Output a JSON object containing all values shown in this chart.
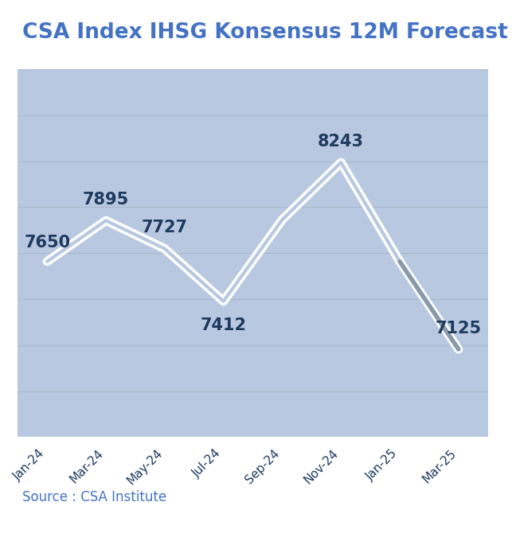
{
  "title": "CSA Index IHSG Konsensus 12M Forecast",
  "source": "Source : CSA Institute",
  "categories": [
    "Jan-24",
    "Mar-24",
    "May-24",
    "Jul-24",
    "Sep-24",
    "Nov-24",
    "Jan-25",
    "Mar-25"
  ],
  "values": [
    7650,
    7895,
    7727,
    7412,
    7900,
    8243,
    7650,
    7125
  ],
  "labels": [
    7650,
    7895,
    7727,
    7412,
    null,
    8243,
    null,
    7125
  ],
  "label_offsets_y": [
    120,
    130,
    130,
    -140,
    null,
    130,
    null,
    130
  ],
  "bg_color": "#b8c8e0",
  "plot_bg_color": "#b8c8e0",
  "outer_bg_color": "#ffffff",
  "line_color_white": "#ffffff",
  "title_color": "#4472c4",
  "label_color": "#1e3a5f",
  "source_color": "#4472c4",
  "grid_color": "#a8b8cc",
  "ylim": [
    6600,
    8800
  ],
  "title_fontsize": 19,
  "label_fontsize": 15,
  "tick_fontsize": 11,
  "source_fontsize": 12
}
